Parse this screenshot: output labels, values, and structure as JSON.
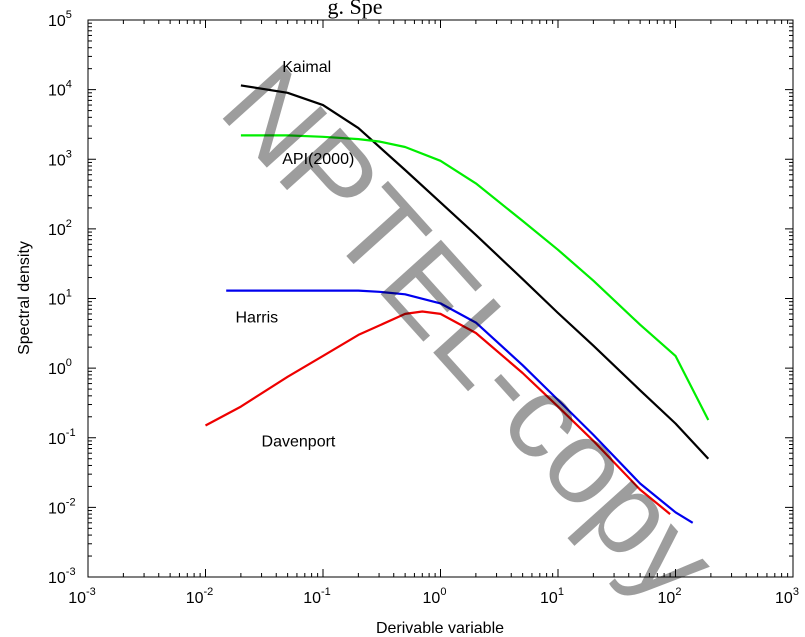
{
  "chart_data": {
    "type": "line",
    "title": "g. Spe",
    "xlabel": "Derivable variable",
    "ylabel": "Spectral density",
    "x_scale": "log",
    "y_scale": "log",
    "xlim": [
      0.001,
      1000
    ],
    "ylim": [
      0.001,
      100000
    ],
    "grid": false,
    "x_ticks": [
      {
        "base": "10",
        "exp": "-3",
        "value": 0.001
      },
      {
        "base": "10",
        "exp": "-2",
        "value": 0.01
      },
      {
        "base": "10",
        "exp": "-1",
        "value": 0.1
      },
      {
        "base": "10",
        "exp": "0",
        "value": 1
      },
      {
        "base": "10",
        "exp": "1",
        "value": 10
      },
      {
        "base": "10",
        "exp": "2",
        "value": 100
      },
      {
        "base": "10",
        "exp": "3",
        "value": 1000
      }
    ],
    "y_ticks": [
      {
        "base": "10",
        "exp": "-3",
        "value": 0.001
      },
      {
        "base": "10",
        "exp": "-2",
        "value": 0.01
      },
      {
        "base": "10",
        "exp": "-1",
        "value": 0.1
      },
      {
        "base": "10",
        "exp": "0",
        "value": 1
      },
      {
        "base": "10",
        "exp": "1",
        "value": 10
      },
      {
        "base": "10",
        "exp": "2",
        "value": 100
      },
      {
        "base": "10",
        "exp": "3",
        "value": 1000
      },
      {
        "base": "10",
        "exp": "4",
        "value": 10000
      },
      {
        "base": "10",
        "exp": "5",
        "value": 100000
      }
    ],
    "series": [
      {
        "name": "Kaimal",
        "color": "#000000",
        "x": [
          0.02,
          0.05,
          0.1,
          0.2,
          0.5,
          1,
          2,
          5,
          10,
          20,
          50,
          100,
          190
        ],
        "y": [
          11500,
          9000,
          6000,
          2800,
          700,
          240,
          82,
          19,
          6.2,
          2.1,
          0.48,
          0.16,
          0.05
        ]
      },
      {
        "name": "API(2000)",
        "color": "#00ee00",
        "x": [
          0.02,
          0.05,
          0.1,
          0.2,
          0.3,
          0.5,
          1,
          2,
          5,
          10,
          20,
          50,
          100,
          190
        ],
        "y": [
          2200,
          2200,
          2100,
          1950,
          1800,
          1500,
          950,
          450,
          130,
          50,
          18,
          4.2,
          1.5,
          0.18
        ]
      },
      {
        "name": "Harris",
        "color": "#0000ee",
        "x": [
          0.015,
          0.05,
          0.1,
          0.2,
          0.3,
          0.5,
          1,
          2,
          5,
          10,
          20,
          50,
          100,
          140
        ],
        "y": [
          13,
          13,
          13,
          13,
          12.5,
          11.5,
          8.5,
          4.5,
          1.1,
          0.35,
          0.11,
          0.022,
          0.0085,
          0.006
        ]
      },
      {
        "name": "Davenport",
        "color": "#ee0000",
        "x": [
          0.01,
          0.02,
          0.05,
          0.1,
          0.2,
          0.5,
          0.7,
          1,
          2,
          5,
          10,
          20,
          50,
          90
        ],
        "y": [
          0.15,
          0.28,
          0.75,
          1.5,
          3,
          6,
          6.5,
          6,
          3.2,
          0.85,
          0.28,
          0.09,
          0.018,
          0.008
        ]
      }
    ],
    "annotations": [
      {
        "text": "Kaimal",
        "x": 0.045,
        "y": 18000
      },
      {
        "text": "API(2000)",
        "x": 0.045,
        "y": 850
      },
      {
        "text": "Harris",
        "x": 0.018,
        "y": 4.5
      },
      {
        "text": "Davenport",
        "x": 0.03,
        "y": 0.075
      }
    ],
    "watermark": "NPTEL-copy"
  },
  "colors": {
    "background": "#ffffff",
    "axis": "#000000"
  }
}
